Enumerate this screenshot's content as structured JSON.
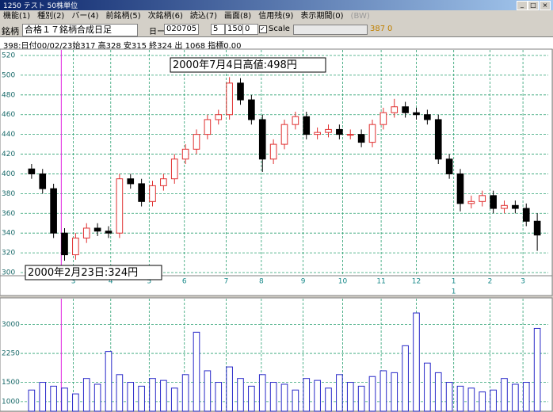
{
  "window": {
    "title": "1250 テスト 50株単位"
  },
  "menu": [
    "機能(1)",
    "種別(2)",
    "バー(4)",
    "前銘柄(5)",
    "次銘柄(6)",
    "読込(7)",
    "画面(8)",
    "信用残(9)",
    "表示期間(0)",
    "(BW)"
  ],
  "toolbar": {
    "label": "銘柄",
    "name": "合格１７銘柄合成日足",
    "period_label": "日ー",
    "date": "020705",
    "field1": "5",
    "field2": "1500",
    "field3": "0",
    "scale": "Scale",
    "count": "387",
    "offset": "0"
  },
  "info_line": "398:日付00/02/23始317 高328 安315 終324 出 1068 指標0.00",
  "chart_data": {
    "type": "candlestick",
    "x": [
      1,
      2,
      3,
      4,
      5,
      6,
      7,
      8,
      9,
      10,
      11,
      12,
      13,
      14,
      15,
      16,
      17,
      18,
      19,
      20,
      21,
      22,
      23,
      24,
      25,
      26,
      27,
      28,
      29,
      30,
      31,
      32,
      33,
      34,
      35,
      36,
      37,
      38,
      39,
      40,
      41,
      42,
      43,
      44,
      45,
      46,
      47
    ],
    "open": [
      405,
      400,
      385,
      340,
      318,
      335,
      345,
      342,
      340,
      395,
      390,
      372,
      388,
      395,
      415,
      425,
      440,
      455,
      460,
      492,
      475,
      455,
      415,
      430,
      450,
      458,
      440,
      442,
      445,
      440,
      440,
      432,
      450,
      462,
      468,
      462,
      460,
      455,
      415,
      400,
      370,
      372,
      378,
      365,
      368,
      365,
      352
    ],
    "high": [
      410,
      405,
      390,
      345,
      340,
      350,
      350,
      347,
      400,
      400,
      395,
      393,
      400,
      420,
      430,
      445,
      460,
      465,
      498,
      497,
      480,
      460,
      435,
      455,
      463,
      463,
      447,
      450,
      450,
      445,
      445,
      455,
      467,
      476,
      473,
      467,
      465,
      460,
      420,
      405,
      378,
      383,
      383,
      373,
      373,
      370,
      360
    ],
    "low": [
      395,
      380,
      335,
      312,
      313,
      330,
      337,
      335,
      335,
      385,
      367,
      367,
      383,
      390,
      410,
      420,
      435,
      450,
      455,
      470,
      450,
      402,
      410,
      425,
      445,
      435,
      435,
      437,
      435,
      435,
      427,
      427,
      445,
      457,
      457,
      455,
      450,
      410,
      395,
      362,
      365,
      367,
      360,
      360,
      360,
      347,
      322
    ],
    "close": [
      400,
      385,
      340,
      318,
      335,
      345,
      342,
      340,
      395,
      390,
      372,
      388,
      395,
      415,
      425,
      440,
      455,
      460,
      492,
      475,
      455,
      415,
      430,
      450,
      458,
      440,
      442,
      445,
      440,
      440,
      432,
      450,
      462,
      468,
      462,
      460,
      455,
      415,
      400,
      370,
      372,
      378,
      365,
      368,
      365,
      352,
      338
    ],
    "volume": [
      1300,
      1500,
      1400,
      1350,
      1200,
      1600,
      1450,
      2300,
      1700,
      1500,
      1400,
      1600,
      1550,
      1350,
      1700,
      2800,
      1800,
      1500,
      1900,
      1600,
      1400,
      1700,
      1500,
      1450,
      1300,
      1600,
      1550,
      1350,
      1700,
      1500,
      1400,
      1650,
      1800,
      1750,
      2450,
      3300,
      2000,
      1750,
      1500,
      1400,
      1350,
      1250,
      1300,
      1600,
      1450,
      1500,
      2900
    ],
    "xlim": [
      0,
      48
    ],
    "xticks": [
      {
        "value": 4.8,
        "label": "3"
      },
      {
        "value": 8.2,
        "label": "4"
      },
      {
        "value": 11.7,
        "label": "5"
      },
      {
        "value": 14.9,
        "label": "6"
      },
      {
        "value": 18.7,
        "label": "7"
      },
      {
        "value": 21.9,
        "label": "8"
      },
      {
        "value": 25.7,
        "label": "9"
      },
      {
        "value": 29.3,
        "label": "10"
      },
      {
        "value": 32.8,
        "label": "11"
      },
      {
        "value": 36,
        "label": "12"
      },
      {
        "value": 39.4,
        "label": "1"
      },
      {
        "value": 42.7,
        "label": "2"
      },
      {
        "value": 45.7,
        "label": "3"
      }
    ],
    "xticks2": [
      {
        "value": 39.4,
        "label": "1"
      }
    ],
    "ylim": [
      300,
      520
    ],
    "yticks": [
      300,
      320,
      340,
      360,
      380,
      400,
      420,
      440,
      460,
      480,
      500,
      520
    ],
    "y2lim": [
      750,
      3650
    ],
    "y2ticks": [
      1000,
      1500,
      2250,
      3000
    ],
    "cursor_x": 3.7,
    "annotations": [
      "2000年7月4日高値:498円",
      "2000年2月23日:324円"
    ],
    "up_color": "#e03030",
    "down_color": "#000000",
    "volume_color": "#2828c8",
    "grid_color": "#2aa070",
    "cursor_color": "#e020e0",
    "grid": true
  }
}
